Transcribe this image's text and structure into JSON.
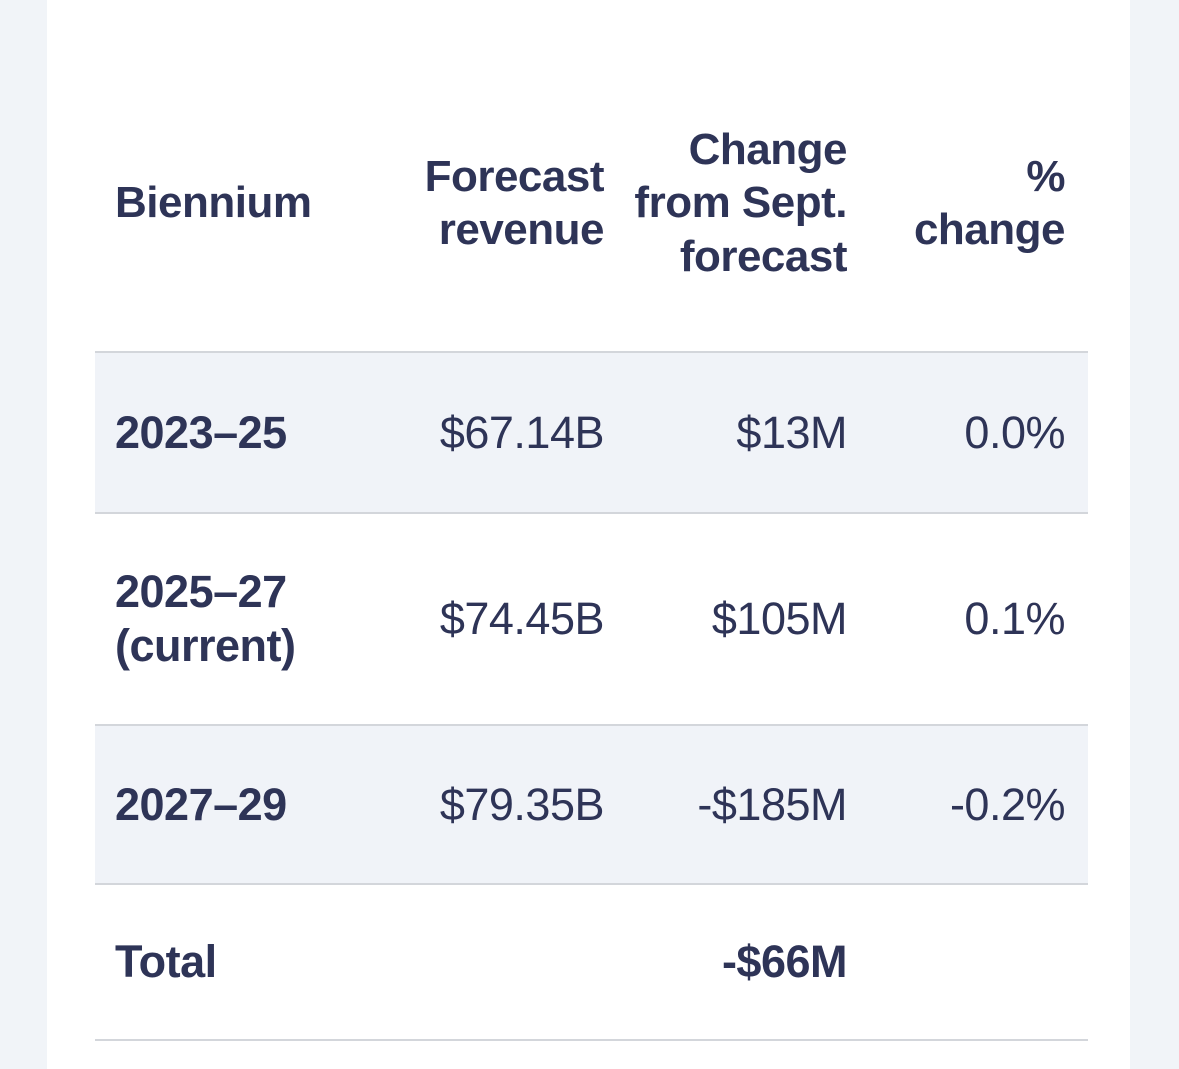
{
  "colors": {
    "text": "#2e3457",
    "strip": "#f1f4f8",
    "shade": "#f0f3f8",
    "border": "#d3d6db",
    "content_background": "#ffffff"
  },
  "chart_data": {
    "type": "table",
    "title": "",
    "columns": [
      "Biennium",
      "Forecast revenue",
      "Change from Sept. forecast",
      "% change"
    ],
    "rows": [
      {
        "cells": [
          "2023–25",
          "$67.14B",
          "$13M",
          "0.0%"
        ],
        "shaded": true,
        "total": false
      },
      {
        "cells": [
          "2025–27 (current)",
          "$74.45B",
          "$105M",
          "0.1%"
        ],
        "shaded": false,
        "total": false
      },
      {
        "cells": [
          "2027–29",
          "$79.35B",
          "-$185M",
          "-0.2%"
        ],
        "shaded": true,
        "total": false
      },
      {
        "cells": [
          "Total",
          "",
          "-$66M",
          ""
        ],
        "shaded": false,
        "total": true
      }
    ],
    "layout_hints": {
      "first_column_align": "left",
      "other_columns_align": "right",
      "row_shading": "alternating light blue-gray",
      "gridlines": "horizontal only"
    }
  }
}
